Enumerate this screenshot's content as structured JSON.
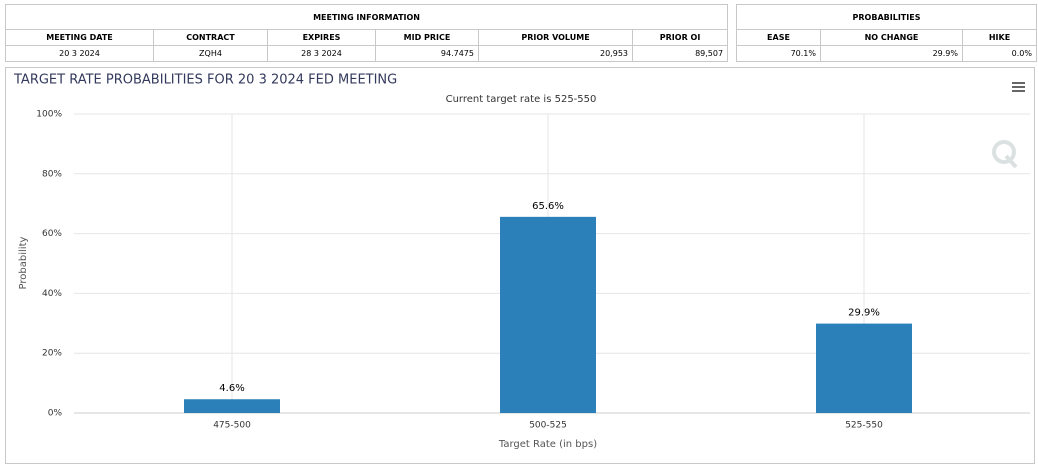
{
  "meeting_information": {
    "title": "MEETING INFORMATION",
    "columns": [
      "MEETING DATE",
      "CONTRACT",
      "EXPIRES",
      "MID PRICE",
      "PRIOR VOLUME",
      "PRIOR OI"
    ],
    "row": [
      "20 3 2024",
      "ZQH4",
      "28 3 2024",
      "94.7475",
      "20,953",
      "89,507"
    ]
  },
  "probabilities": {
    "title": "PROBABILITIES",
    "columns": [
      "EASE",
      "NO CHANGE",
      "HIKE"
    ],
    "row": [
      "70.1%",
      "29.9%",
      "0.0%"
    ]
  },
  "chart_data": {
    "type": "bar",
    "title": "TARGET RATE PROBABILITIES FOR 20 3 2024 FED MEETING",
    "subtitle": "Current target rate is 525-550",
    "x_label": "Target Rate (in bps)",
    "y_label": "Probability",
    "categories": [
      "475-500",
      "500-525",
      "525-550"
    ],
    "values": [
      4.6,
      65.6,
      29.9
    ],
    "value_labels": [
      "4.6%",
      "65.6%",
      "29.9%"
    ],
    "color": "#2b80b9",
    "ylim": [
      0,
      100
    ],
    "yticks": [
      {
        "value": 0,
        "label": "0%"
      },
      {
        "value": 20,
        "label": "20%"
      },
      {
        "value": 40,
        "label": "40%"
      },
      {
        "value": 60,
        "label": "60%"
      },
      {
        "value": 80,
        "label": "80%"
      },
      {
        "value": 100,
        "label": "100%"
      }
    ],
    "grid": true
  }
}
